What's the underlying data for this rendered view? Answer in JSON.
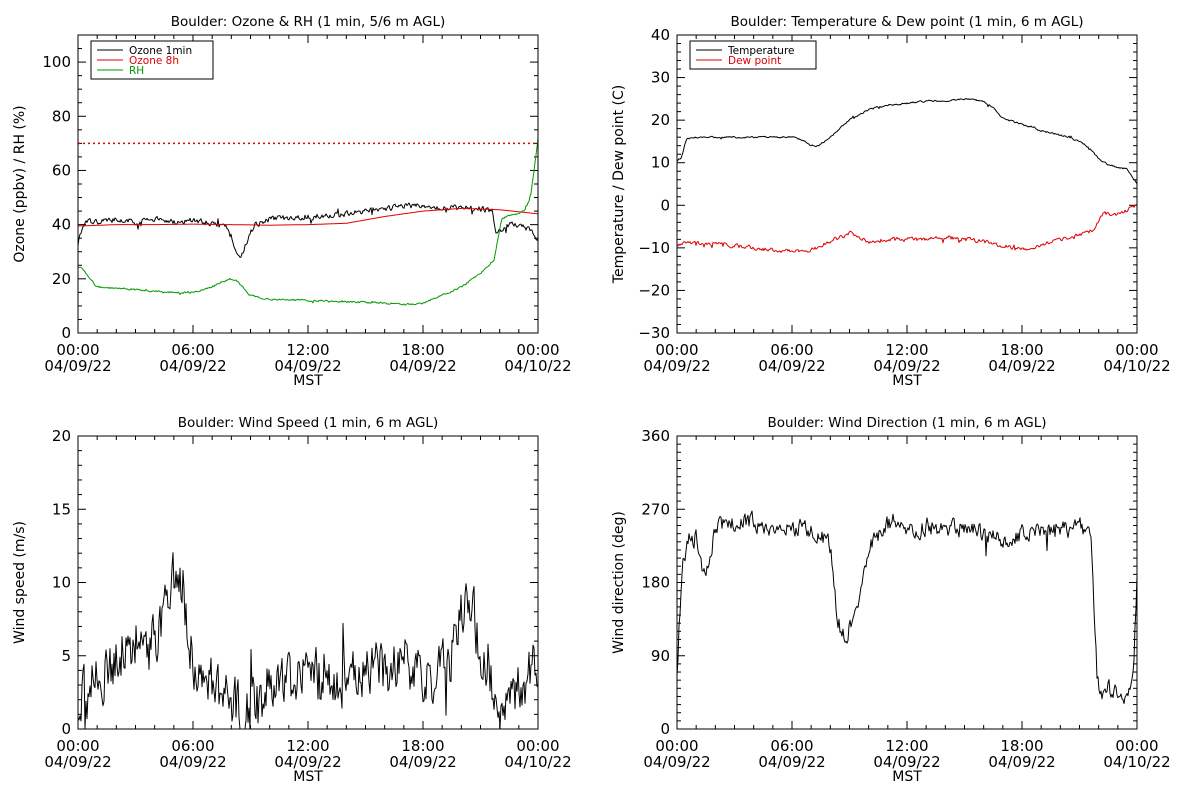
{
  "colors": {
    "black": "#000000",
    "red": "#dd0000",
    "green": "#009900"
  },
  "x_axis": {
    "ticks": [
      0,
      6,
      12,
      18,
      24
    ],
    "minor_step": 1,
    "time_labels": [
      "00:00",
      "06:00",
      "12:00",
      "18:00",
      "00:00"
    ],
    "date_labels": [
      "04/09/22",
      "04/09/22",
      "04/09/22",
      "04/09/22",
      "04/10/22"
    ],
    "title": "MST"
  },
  "chart_data": [
    {
      "type": "line",
      "title": "Boulder: Ozone & RH (1 min, 5/6 m AGL)",
      "ylabel": "Ozone (ppbv) / RH (%)",
      "xlim": [
        0,
        24
      ],
      "ylim": [
        0,
        110
      ],
      "yticks": [
        0,
        20,
        40,
        60,
        80,
        100
      ],
      "ytick_labels": [
        "0",
        "20",
        "40",
        "60",
        "80",
        "100"
      ],
      "y_minor_step": 5,
      "legend_position": "top-left",
      "reference_line": {
        "y": 70,
        "color": "#dd0000",
        "style": "dotted"
      },
      "series": [
        {
          "name": "Ozone 1min",
          "color": "#000000",
          "noise": 1.5,
          "x": [
            0,
            0.1,
            0.3,
            0.6,
            1,
            2,
            3,
            4,
            5,
            6,
            7,
            7.8,
            8.1,
            8.4,
            8.6,
            8.9,
            9.2,
            10,
            11,
            12,
            13,
            14,
            15,
            16,
            17,
            18,
            19,
            20,
            21,
            21.6,
            21.8,
            22.1,
            22.5,
            23,
            23.5,
            24
          ],
          "y": [
            32,
            36,
            40,
            41,
            41,
            42,
            41,
            42,
            41,
            41.5,
            40.5,
            39,
            33,
            28,
            30,
            35,
            40,
            42,
            42.5,
            43,
            43.5,
            44,
            45,
            46,
            47,
            47,
            46.5,
            46,
            46,
            45,
            38,
            38,
            40,
            40,
            38,
            35
          ]
        },
        {
          "name": "Ozone 8h",
          "color": "#dd0000",
          "noise": 0,
          "x": [
            0,
            2,
            4,
            6,
            8,
            10,
            12,
            14,
            16,
            18,
            20,
            22,
            24
          ],
          "y": [
            39.5,
            40,
            40,
            40.2,
            40,
            39.8,
            40,
            40.5,
            43,
            45,
            46,
            45.5,
            44
          ]
        },
        {
          "name": "RH",
          "color": "#009900",
          "noise": 0.5,
          "x": [
            0,
            0.2,
            0.6,
            1,
            2,
            3,
            4,
            5,
            6,
            6.5,
            7,
            7.5,
            8,
            8.3,
            8.6,
            8.9,
            9.5,
            10,
            12,
            14,
            16,
            17,
            18,
            19,
            20,
            21,
            21.7,
            22.1,
            22.5,
            23,
            23.3,
            23.6,
            23.8,
            24
          ],
          "y": [
            24,
            24,
            20,
            17,
            16.5,
            16,
            15.5,
            15,
            15,
            16,
            17,
            19,
            20,
            19,
            17,
            14,
            13,
            12.5,
            12,
            11.5,
            11,
            10.5,
            11,
            14,
            17,
            22,
            27,
            42,
            43.5,
            44,
            45,
            50,
            60,
            72
          ]
        }
      ]
    },
    {
      "type": "line",
      "title": "Boulder: Temperature & Dew point (1 min, 6 m AGL)",
      "ylabel": "Temperature / Dew point (C)",
      "xlim": [
        0,
        24
      ],
      "ylim": [
        -30,
        40
      ],
      "yticks": [
        -30,
        -20,
        -10,
        0,
        10,
        20,
        30,
        40
      ],
      "ytick_labels": [
        "−30",
        "−20",
        "−10",
        "0",
        "10",
        "20",
        "30",
        "40"
      ],
      "y_minor_step": 2,
      "legend_position": "top-left",
      "series": [
        {
          "name": "Temperature",
          "color": "#000000",
          "noise": 0.3,
          "x": [
            0,
            0.2,
            0.5,
            1,
            2,
            3,
            4,
            5,
            6,
            6.5,
            7,
            7.4,
            8,
            9,
            10,
            11,
            12,
            13,
            14,
            15,
            16,
            16.5,
            17,
            18,
            19,
            20,
            21,
            21.5,
            22,
            22.5,
            23,
            23.5,
            24
          ],
          "y": [
            10.5,
            11,
            15.5,
            16,
            16,
            16,
            16,
            16,
            16,
            15.5,
            14,
            14,
            16,
            20,
            22.5,
            23.5,
            24,
            24.5,
            24.5,
            25,
            24.5,
            23,
            20.5,
            19,
            17.5,
            16.5,
            15,
            13.5,
            11,
            9.5,
            9,
            8.5,
            5
          ]
        },
        {
          "name": "Dew point",
          "color": "#dd0000",
          "noise": 0.7,
          "x": [
            0,
            1,
            2,
            3,
            4,
            5,
            6,
            7,
            8,
            9,
            10,
            11,
            12,
            13,
            14,
            15,
            16,
            17,
            18,
            19,
            20,
            21,
            21.8,
            22.2,
            23,
            24
          ],
          "y": [
            -9,
            -9,
            -9,
            -9.5,
            -10,
            -10.5,
            -11,
            -10.5,
            -8.5,
            -6.5,
            -8.5,
            -8,
            -8,
            -8,
            -7.5,
            -8,
            -8.5,
            -9.5,
            -10.5,
            -9.5,
            -8,
            -7,
            -5.5,
            -2,
            -2,
            0
          ]
        }
      ]
    },
    {
      "type": "line",
      "title": "Boulder: Wind Speed (1 min, 6 m AGL)",
      "ylabel": "Wind speed (m/s)",
      "xlim": [
        0,
        24
      ],
      "ylim": [
        0,
        20
      ],
      "yticks": [
        0,
        5,
        10,
        15,
        20
      ],
      "ytick_labels": [
        "0",
        "5",
        "10",
        "15",
        "20"
      ],
      "y_minor_step": 1,
      "series": [
        {
          "color": "#000000",
          "noise": 2.8,
          "clip_min": 0,
          "x": [
            0,
            0.3,
            0.6,
            1,
            1.5,
            2,
            3,
            3.5,
            4,
            4.5,
            5,
            5.5,
            6,
            6.5,
            7,
            8,
            9,
            10,
            11,
            12,
            13,
            14,
            15,
            16,
            17,
            18,
            19,
            19.5,
            20,
            20.5,
            21,
            22,
            23,
            24
          ],
          "y": [
            1,
            2,
            3,
            3.5,
            4,
            5,
            6,
            5,
            6,
            8,
            10,
            9,
            5,
            3.5,
            2.5,
            1.5,
            1,
            2.5,
            3.5,
            3.5,
            3.5,
            3.5,
            4,
            4,
            4.5,
            3.5,
            4,
            5,
            8,
            9,
            5,
            2,
            2.5,
            5
          ]
        }
      ]
    },
    {
      "type": "line",
      "title": "Boulder: Wind Direction (1 min, 6 m AGL)",
      "ylabel": "Wind direction (deg)",
      "xlim": [
        0,
        24
      ],
      "ylim": [
        0,
        360
      ],
      "yticks": [
        0,
        90,
        180,
        270,
        360
      ],
      "ytick_labels": [
        "0",
        "90",
        "180",
        "270",
        "360"
      ],
      "y_minor_step": 10,
      "series": [
        {
          "color": "#000000",
          "noise": 16,
          "clip_min": 0,
          "clip_max": 360,
          "x": [
            0,
            0.1,
            0.3,
            0.6,
            1,
            1.5,
            2,
            3,
            4,
            5,
            6,
            6.5,
            7,
            7.5,
            8,
            8.4,
            8.8,
            9.3,
            9.7,
            10.2,
            10.8,
            11.5,
            12,
            13,
            14,
            15,
            16,
            17,
            18,
            19,
            20,
            21,
            21.6,
            21.8,
            22,
            22.5,
            23,
            23.5,
            23.8,
            24
          ],
          "y": [
            60,
            120,
            200,
            230,
            235,
            180,
            250,
            250,
            255,
            245,
            248,
            246,
            240,
            235,
            225,
            130,
            110,
            150,
            180,
            230,
            250,
            255,
            240,
            250,
            245,
            248,
            240,
            230,
            240,
            245,
            248,
            248,
            240,
            120,
            40,
            50,
            45,
            40,
            60,
            180
          ]
        }
      ]
    }
  ]
}
